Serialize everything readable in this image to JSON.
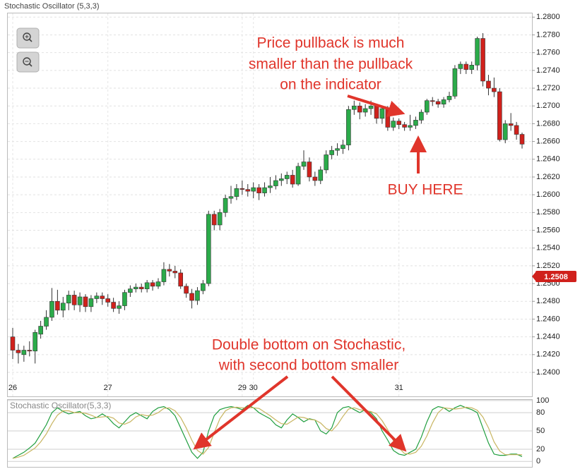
{
  "header": {
    "title": "Stochastic Oscillator (5,3,3)"
  },
  "chart_data": [
    {
      "type": "candlestick",
      "categories": [
        "26",
        null,
        null,
        null,
        null,
        null,
        null,
        null,
        null,
        null,
        null,
        null,
        null,
        null,
        null,
        null,
        null,
        "27",
        null,
        null,
        null,
        null,
        null,
        null,
        null,
        null,
        null,
        null,
        null,
        null,
        null,
        null,
        null,
        null,
        null,
        null,
        null,
        null,
        null,
        null,
        null,
        "29",
        null,
        "30",
        null,
        null,
        null,
        null,
        null,
        null,
        null,
        null,
        null,
        null,
        null,
        null,
        null,
        null,
        null,
        null,
        null,
        null,
        null,
        null,
        null,
        null,
        null,
        null,
        null,
        "31",
        null,
        null,
        null,
        null,
        null,
        null,
        null,
        null,
        null,
        null,
        null,
        null,
        null,
        null,
        null,
        null,
        null,
        null,
        null,
        null,
        null,
        null
      ],
      "open": [
        1.244,
        1.2425,
        1.242,
        1.2425,
        1.2424,
        1.2443,
        1.2452,
        1.2462,
        1.248,
        1.247,
        1.2478,
        1.2487,
        1.2476,
        1.2485,
        1.2474,
        1.2483,
        1.2486,
        1.2483,
        1.2479,
        1.2472,
        1.2475,
        1.249,
        1.2494,
        1.2496,
        1.2494,
        1.2501,
        1.2497,
        1.2502,
        1.2516,
        1.2514,
        1.2512,
        1.2497,
        1.2489,
        1.2481,
        1.2492,
        1.25,
        1.2578,
        1.2566,
        1.258,
        1.2596,
        1.2598,
        1.2607,
        1.2606,
        1.2604,
        1.2608,
        1.2602,
        1.2608,
        1.261,
        1.2616,
        1.2618,
        1.2622,
        1.2612,
        1.2632,
        1.2637,
        1.262,
        1.2616,
        1.2628,
        1.2645,
        1.265,
        1.2652,
        1.2656,
        1.2696,
        1.27,
        1.2693,
        1.2697,
        1.27,
        1.2686,
        1.2697,
        1.2676,
        1.2683,
        1.2679,
        1.2676,
        1.2678,
        1.2684,
        1.2693,
        1.2706,
        1.2705,
        1.2702,
        1.2707,
        1.2711,
        1.2742,
        1.2747,
        1.2741,
        1.2746,
        1.2776,
        1.2728,
        1.272,
        1.2716,
        1.2662,
        1.268,
        1.2678,
        1.2668
      ],
      "high": [
        1.245,
        1.2432,
        1.243,
        1.2435,
        1.2448,
        1.2458,
        1.247,
        1.2495,
        1.2493,
        1.2485,
        1.2492,
        1.2492,
        1.249,
        1.2488,
        1.2487,
        1.249,
        1.249,
        1.2488,
        1.2484,
        1.248,
        1.2493,
        1.2498,
        1.25,
        1.25,
        1.2504,
        1.2504,
        1.2506,
        1.2524,
        1.2522,
        1.252,
        1.2516,
        1.25,
        1.2494,
        1.2496,
        1.2504,
        1.2582,
        1.2582,
        1.2584,
        1.26,
        1.261,
        1.2612,
        1.2616,
        1.2612,
        1.2614,
        1.2612,
        1.2614,
        1.262,
        1.2622,
        1.2624,
        1.2626,
        1.2628,
        1.2636,
        1.265,
        1.2642,
        1.2626,
        1.2632,
        1.265,
        1.2655,
        1.2658,
        1.2662,
        1.27,
        1.2706,
        1.2704,
        1.2702,
        1.2706,
        1.2702,
        1.27,
        1.27,
        1.2687,
        1.2686,
        1.2682,
        1.269,
        1.2688,
        1.2696,
        1.2708,
        1.271,
        1.2708,
        1.271,
        1.2716,
        1.2746,
        1.275,
        1.275,
        1.275,
        1.2778,
        1.2782,
        1.2735,
        1.2732,
        1.272,
        1.2684,
        1.2692,
        1.2682,
        1.267
      ],
      "low": [
        1.2415,
        1.241,
        1.2412,
        1.2418,
        1.241,
        1.2438,
        1.2448,
        1.2458,
        1.2465,
        1.2462,
        1.247,
        1.247,
        1.2468,
        1.2468,
        1.2468,
        1.2478,
        1.2476,
        1.2474,
        1.2468,
        1.2466,
        1.247,
        1.2485,
        1.249,
        1.249,
        1.249,
        1.2492,
        1.2494,
        1.2498,
        1.2508,
        1.2506,
        1.2494,
        1.2484,
        1.2472,
        1.2476,
        1.2488,
        1.2497,
        1.256,
        1.256,
        1.2575,
        1.259,
        1.2594,
        1.26,
        1.2598,
        1.2596,
        1.2594,
        1.2598,
        1.2602,
        1.2606,
        1.261,
        1.2612,
        1.2608,
        1.261,
        1.2628,
        1.2615,
        1.261,
        1.2612,
        1.2624,
        1.264,
        1.2644,
        1.2646,
        1.265,
        1.269,
        1.2685,
        1.2688,
        1.269,
        1.268,
        1.268,
        1.2672,
        1.2672,
        1.2674,
        1.2672,
        1.2672,
        1.2674,
        1.268,
        1.269,
        1.27,
        1.2698,
        1.2698,
        1.2704,
        1.2708,
        1.2736,
        1.2736,
        1.2736,
        1.274,
        1.2722,
        1.2712,
        1.271,
        1.266,
        1.2658,
        1.2672,
        1.2662,
        1.2652
      ],
      "close": [
        1.2425,
        1.2422,
        1.2425,
        1.2424,
        1.2445,
        1.2452,
        1.2462,
        1.248,
        1.247,
        1.2478,
        1.2487,
        1.2476,
        1.2485,
        1.2474,
        1.2483,
        1.2486,
        1.2483,
        1.2479,
        1.2472,
        1.2475,
        1.249,
        1.2494,
        1.2496,
        1.2494,
        1.2501,
        1.2497,
        1.2502,
        1.2516,
        1.2514,
        1.2512,
        1.2497,
        1.2489,
        1.2481,
        1.2492,
        1.25,
        1.2578,
        1.2566,
        1.258,
        1.2596,
        1.2598,
        1.2607,
        1.2606,
        1.2604,
        1.2608,
        1.2602,
        1.2608,
        1.261,
        1.2616,
        1.2618,
        1.2622,
        1.2612,
        1.2632,
        1.2637,
        1.262,
        1.2616,
        1.2628,
        1.2645,
        1.265,
        1.2652,
        1.2656,
        1.2696,
        1.27,
        1.2693,
        1.2697,
        1.27,
        1.2686,
        1.2697,
        1.2676,
        1.2683,
        1.2679,
        1.2676,
        1.2678,
        1.2684,
        1.2693,
        1.2706,
        1.2705,
        1.2702,
        1.2707,
        1.2711,
        1.2742,
        1.2747,
        1.2741,
        1.2746,
        1.2776,
        1.2728,
        1.272,
        1.2716,
        1.2662,
        1.268,
        1.2678,
        1.2668,
        1.2657
      ],
      "up_color": "#2bab4a",
      "down_color": "#d0211c",
      "ylim": [
        1.2373,
        1.2805
      ],
      "yticks": [
        {
          "value": 1.24,
          "label": "1.2400"
        },
        {
          "value": 1.242,
          "label": "1.2420"
        },
        {
          "value": 1.244,
          "label": "1.2440"
        },
        {
          "value": 1.246,
          "label": "1.2460"
        },
        {
          "value": 1.248,
          "label": "1.2480"
        },
        {
          "value": 1.25,
          "label": "1.2500"
        },
        {
          "value": 1.252,
          "label": "1.2520"
        },
        {
          "value": 1.254,
          "label": "1.2540"
        },
        {
          "value": 1.256,
          "label": "1.2560"
        },
        {
          "value": 1.258,
          "label": "1.2580"
        },
        {
          "value": 1.26,
          "label": "1.2600"
        },
        {
          "value": 1.262,
          "label": "1.2620"
        },
        {
          "value": 1.264,
          "label": "1.2640"
        },
        {
          "value": 1.266,
          "label": "1.2660"
        },
        {
          "value": 1.268,
          "label": "1.2680"
        },
        {
          "value": 1.27,
          "label": "1.2700"
        },
        {
          "value": 1.272,
          "label": "1.2720"
        },
        {
          "value": 1.274,
          "label": "1.2740"
        },
        {
          "value": 1.276,
          "label": "1.2760"
        },
        {
          "value": 1.278,
          "label": "1.2780"
        },
        {
          "value": 1.28,
          "label": "1.2800"
        }
      ],
      "grid": true,
      "current_price": 1.2508,
      "annotations": [
        "Price pullback is much",
        "smaller than the pullback",
        "on the indicator",
        "BUY HERE",
        "Double bottom on Stochastic,",
        "with second bottom smaller"
      ]
    },
    {
      "type": "line",
      "title": "Stochastic Oscillator(5,3,3)",
      "series": [
        {
          "color": "#1f9e3e",
          "values": [
            5,
            10,
            15,
            22,
            30,
            45,
            60,
            80,
            88,
            82,
            78,
            80,
            82,
            75,
            70,
            72,
            78,
            72,
            62,
            55,
            65,
            75,
            80,
            75,
            70,
            82,
            88,
            90,
            85,
            75,
            55,
            35,
            15,
            5,
            15,
            50,
            75,
            85,
            88,
            90,
            88,
            85,
            92,
            88,
            80,
            75,
            70,
            60,
            55,
            68,
            78,
            72,
            65,
            70,
            68,
            50,
            45,
            55,
            80,
            88,
            90,
            85,
            80,
            85,
            80,
            70,
            50,
            35,
            18,
            12,
            10,
            15,
            20,
            40,
            65,
            85,
            90,
            88,
            82,
            88,
            92,
            88,
            85,
            80,
            55,
            30,
            12,
            10,
            10,
            12,
            12,
            8
          ]
        },
        {
          "color": "#c8b561",
          "values": [
            5,
            7,
            10,
            16,
            22,
            32,
            45,
            62,
            76,
            83,
            83,
            80,
            80,
            79,
            76,
            72,
            73,
            74,
            71,
            63,
            61,
            65,
            73,
            77,
            75,
            76,
            80,
            87,
            88,
            83,
            72,
            55,
            35,
            18,
            12,
            23,
            47,
            70,
            83,
            88,
            89,
            88,
            88,
            88,
            87,
            81,
            75,
            68,
            62,
            61,
            67,
            73,
            72,
            69,
            68,
            63,
            54,
            50,
            60,
            74,
            86,
            88,
            85,
            83,
            82,
            78,
            67,
            52,
            34,
            22,
            13,
            12,
            15,
            25,
            42,
            63,
            80,
            88,
            87,
            86,
            87,
            89,
            88,
            84,
            73,
            55,
            32,
            17,
            11,
            11,
            11,
            11
          ]
        }
      ],
      "ylim": [
        -9,
        101
      ],
      "yticks": [
        0,
        20,
        50,
        80,
        100
      ]
    }
  ]
}
